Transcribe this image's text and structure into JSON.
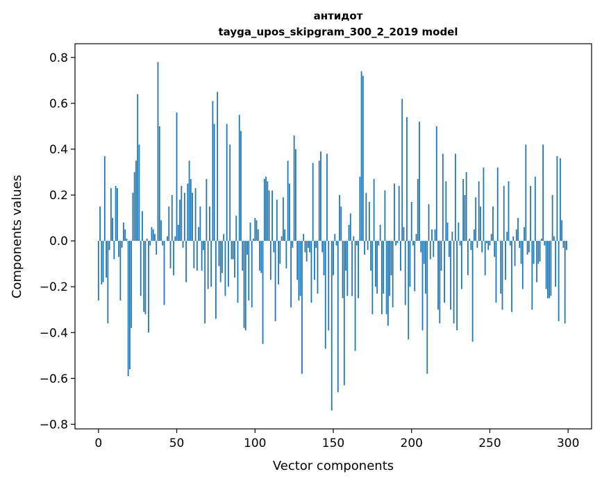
{
  "chart_data": {
    "type": "bar",
    "title": "антидот",
    "subtitle": "tayga_upos_skipgram_300_2_2019 model",
    "xlabel": "Vector components",
    "ylabel": "Components values",
    "xlim": [
      -15,
      315
    ],
    "ylim": [
      -0.82,
      0.86
    ],
    "xticks": [
      0,
      50,
      100,
      150,
      200,
      250,
      300
    ],
    "xtick_labels": [
      "0",
      "50",
      "100",
      "150",
      "200",
      "250",
      "300"
    ],
    "yticks": [
      0.8,
      0.6,
      0.4,
      0.2,
      0.0,
      -0.2,
      -0.4,
      -0.6,
      -0.8
    ],
    "ytick_labels": [
      "0.8",
      "0.6",
      "0.4",
      "0.2",
      "0.0",
      "−0.2",
      "−0.4",
      "−0.6",
      "−0.8"
    ],
    "grid": false,
    "color": "#1f77b4",
    "values": [
      -0.26,
      0.15,
      -0.19,
      -0.18,
      0.37,
      -0.16,
      -0.36,
      -0.04,
      0.23,
      0.1,
      -0.08,
      0.24,
      0.23,
      -0.07,
      -0.26,
      -0.03,
      0.08,
      0.05,
      0.01,
      -0.59,
      -0.56,
      -0.38,
      0.21,
      0.3,
      0.35,
      0.64,
      0.42,
      -0.24,
      0.13,
      -0.31,
      -0.32,
      0.01,
      -0.4,
      -0.02,
      0.06,
      0.05,
      0.03,
      -0.06,
      0.78,
      0.5,
      0.09,
      -0.02,
      -0.28,
      0.0,
      0.02,
      0.15,
      -0.12,
      0.2,
      -0.15,
      0.02,
      0.56,
      0.07,
      0.18,
      0.24,
      -0.03,
      0.21,
      -0.18,
      0.25,
      0.35,
      0.27,
      0.21,
      -0.12,
      0.23,
      -0.13,
      0.06,
      0.15,
      -0.13,
      -0.04,
      -0.36,
      0.27,
      -0.21,
      0.15,
      -0.2,
      0.61,
      0.51,
      -0.34,
      0.65,
      -0.11,
      -0.18,
      -0.14,
      0.03,
      -0.24,
      0.51,
      -0.2,
      0.42,
      -0.08,
      -0.08,
      -0.16,
      0.11,
      -0.27,
      0.55,
      0.48,
      -0.13,
      -0.38,
      -0.39,
      -0.06,
      -0.26,
      0.08,
      -0.29,
      0.01,
      0.1,
      0.09,
      0.05,
      -0.13,
      -0.14,
      -0.45,
      0.27,
      0.28,
      0.26,
      0.22,
      -0.17,
      0.22,
      -0.05,
      -0.35,
      0.18,
      -0.19,
      -0.1,
      0.02,
      0.19,
      0.05,
      -0.12,
      0.35,
      0.25,
      -0.29,
      -0.03,
      0.46,
      0.4,
      -0.17,
      -0.26,
      -0.24,
      -0.58,
      0.03,
      -0.05,
      -0.09,
      -0.03,
      -0.05,
      -0.27,
      0.34,
      -0.17,
      -0.03,
      -0.23,
      0.35,
      0.39,
      -0.05,
      -0.15,
      -0.47,
      0.38,
      -0.39,
      0.0,
      -0.74,
      -0.15,
      0.03,
      -0.02,
      -0.66,
      0.2,
      0.15,
      -0.25,
      -0.63,
      -0.13,
      -0.24,
      0.07,
      0.12,
      -0.24,
      0.02,
      -0.48,
      -0.02,
      -0.25,
      0.28,
      0.74,
      0.72,
      -0.06,
      0.21,
      -0.04,
      0.17,
      -0.13,
      -0.32,
      0.27,
      -0.2,
      -0.23,
      -0.02,
      0.07,
      -0.32,
      -0.23,
      0.22,
      -0.32,
      -0.37,
      -0.24,
      -0.15,
      -0.29,
      0.25,
      -0.02,
      -0.01,
      0.24,
      -0.13,
      0.62,
      0.06,
      -0.28,
      0.54,
      -0.43,
      -0.2,
      0.17,
      -0.02,
      -0.22,
      0.03,
      0.27,
      0.52,
      -0.05,
      -0.39,
      -0.1,
      -0.23,
      -0.58,
      0.16,
      -0.08,
      0.05,
      -0.07,
      0.05,
      0.5,
      -0.3,
      -0.36,
      -0.13,
      0.38,
      -0.27,
      0.26,
      0.08,
      -0.07,
      -0.3,
      0.04,
      -0.36,
      0.38,
      -0.39,
      0.08,
      -0.02,
      -0.21,
      0.27,
      0.2,
      0.3,
      -0.15,
      0.01,
      -0.04,
      -0.44,
      0.05,
      0.19,
      -0.03,
      0.26,
      0.15,
      -0.05,
      0.32,
      -0.15,
      -0.01,
      -0.04,
      -0.02,
      0.03,
      0.15,
      -0.07,
      -0.27,
      0.32,
      0.0,
      -0.23,
      -0.3,
      0.24,
      -0.17,
      0.04,
      0.26,
      -0.02,
      -0.31,
      0.02,
      -0.11,
      0.05,
      0.1,
      -0.03,
      -0.1,
      -0.21,
      0.06,
      0.42,
      -0.06,
      -0.05,
      0.24,
      -0.3,
      -0.1,
      0.28,
      -0.18,
      -0.1,
      -0.09,
      0.01,
      0.42,
      -0.02,
      -0.21,
      -0.25,
      -0.25,
      -0.24,
      0.2,
      0.02,
      -0.2,
      0.37,
      -0.35,
      0.36,
      0.09,
      -0.03,
      -0.36,
      -0.04
    ]
  }
}
